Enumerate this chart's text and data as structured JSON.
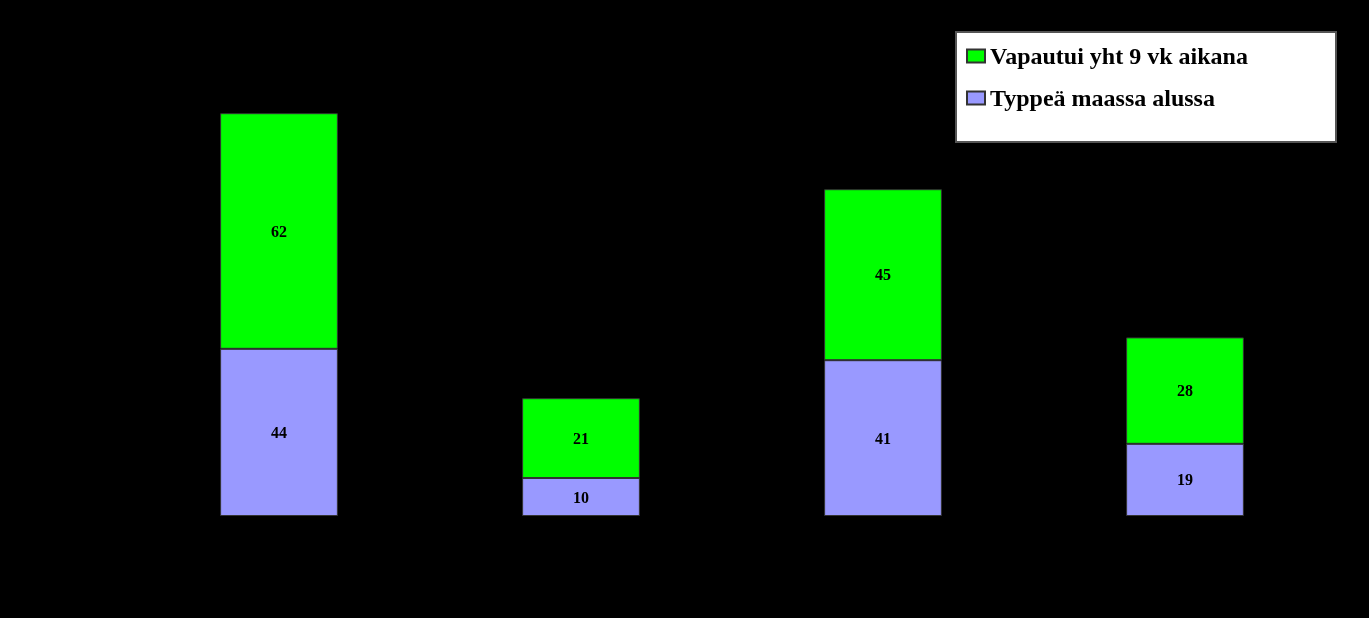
{
  "chart_data": {
    "type": "bar",
    "stacked": true,
    "categories": [
      null,
      null,
      null,
      null
    ],
    "series": [
      {
        "name": "Typpeä maassa alussa",
        "color": "#9999ff",
        "values": [
          44,
          10,
          41,
          19
        ]
      },
      {
        "name": "Vapautui yht 9 vk aikana",
        "color": "#00ff00",
        "values": [
          62,
          21,
          45,
          28
        ]
      }
    ],
    "data_labels": true,
    "legend": "top right",
    "grid": false
  }
}
